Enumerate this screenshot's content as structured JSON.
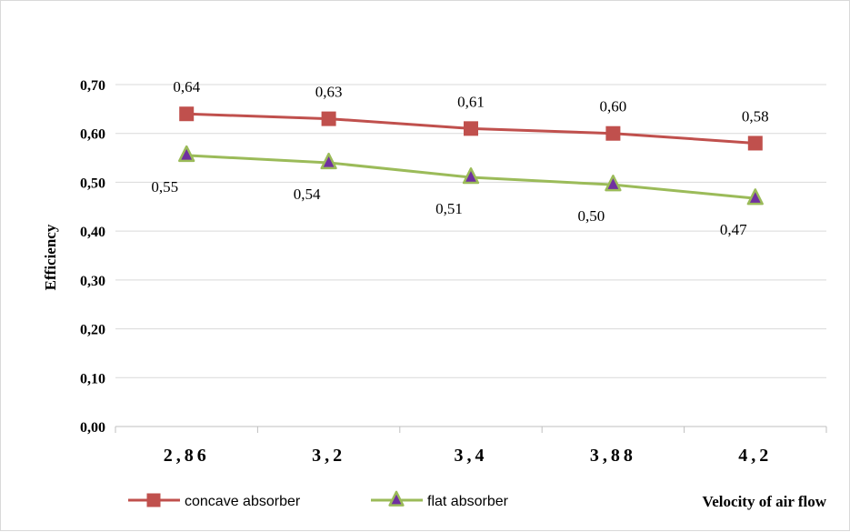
{
  "chart_data": {
    "type": "line",
    "categories": [
      "2,86",
      "3,2",
      "3,4",
      "3,88",
      "4,2"
    ],
    "series": [
      {
        "name": "concave absorber",
        "values": [
          0.64,
          0.63,
          0.61,
          0.6,
          0.58
        ],
        "labels": [
          "0,64",
          "0,63",
          "0,61",
          "0,60",
          "0,58"
        ],
        "color": "#c0504d",
        "marker": "square",
        "marker_color": "#c0504d"
      },
      {
        "name": "flat absorber",
        "values": [
          0.555,
          0.54,
          0.51,
          0.495,
          0.467
        ],
        "labels": [
          "0,55",
          "0,54",
          "0,51",
          "0,50",
          "0,47"
        ],
        "color": "#9bbb59",
        "marker": "triangle",
        "marker_color": "#7030a0"
      }
    ],
    "ylabel": "Efficiency",
    "xlabel": "Velocity of air flow",
    "ylim": [
      0,
      0.7
    ],
    "yticks": [
      0,
      0.1,
      0.2,
      0.3,
      0.4,
      0.5,
      0.6,
      0.7
    ],
    "ytick_labels": [
      "0,00",
      "0,10",
      "0,20",
      "0,30",
      "0,40",
      "0,50",
      "0,60",
      "0,70"
    ],
    "grid": "horizontal",
    "gridline_color": "#d9d9d9",
    "legend_position": "bottom-left"
  }
}
